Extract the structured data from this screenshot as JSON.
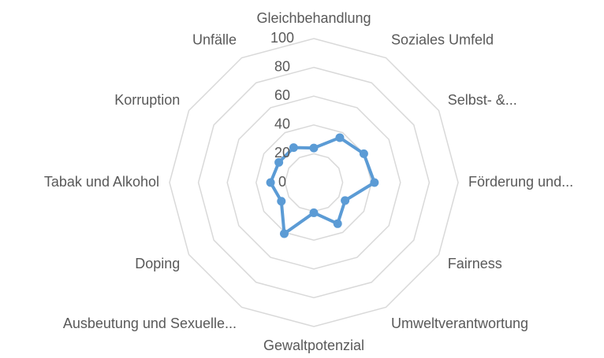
{
  "chart_data": {
    "type": "radar",
    "categories": [
      "Gleichbehandlung",
      "Soziales Umfeld",
      "Selbst- &...",
      "Förderung und...",
      "Fairness",
      "Umweltverantwortung",
      "Gewaltpotenzial",
      "Ausbeutung und Sexuelle...",
      "Doping",
      "Tabak und Alkohol",
      "Korruption",
      "Unfälle"
    ],
    "values": [
      24,
      36,
      40,
      42,
      25,
      33,
      21,
      41,
      26,
      30,
      28,
      28
    ],
    "color": "#5b9bd5",
    "ylim": [
      0,
      100
    ],
    "yticks": [
      0,
      20,
      40,
      60,
      80,
      100
    ],
    "grid": true
  }
}
